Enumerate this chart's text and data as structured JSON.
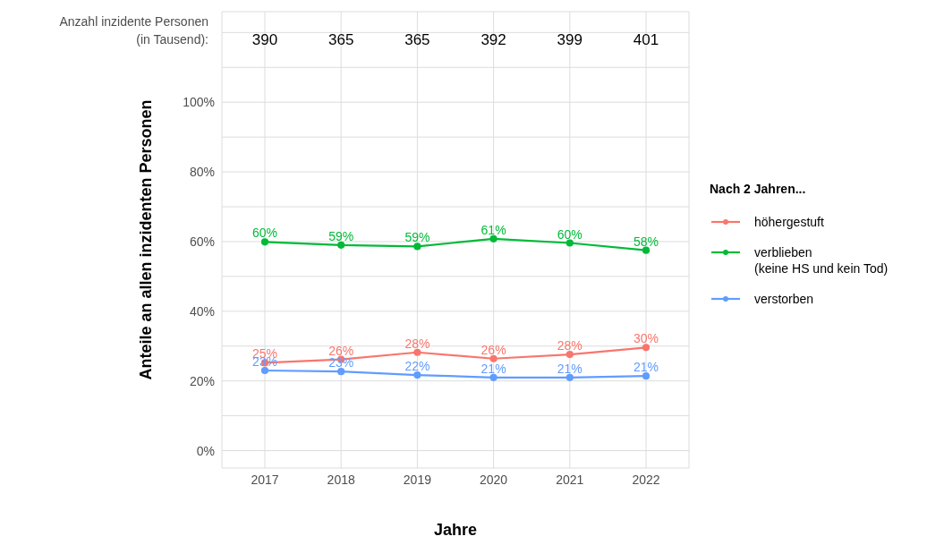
{
  "chart_data": {
    "type": "line",
    "xlabel": "Jahre",
    "ylabel": "Anteile an allen inzidenten Personen",
    "legend_title": "Nach 2 Jahren...",
    "categories": [
      "2017",
      "2018",
      "2019",
      "2020",
      "2021",
      "2022"
    ],
    "series": [
      {
        "name": "höhergestuft",
        "color": "#f8766d",
        "values": [
          25.2,
          26.2,
          28.2,
          26.4,
          27.6,
          29.6
        ],
        "value_labels": [
          "25%",
          "26%",
          "28%",
          "26%",
          "28%",
          "30%"
        ]
      },
      {
        "name": "verblieben\n(keine HS und kein Tod)",
        "color": "#00ba38",
        "values": [
          59.9,
          59.0,
          58.6,
          60.8,
          59.6,
          57.5
        ],
        "value_labels": [
          "60%",
          "59%",
          "59%",
          "61%",
          "60%",
          "58%"
        ]
      },
      {
        "name": "verstorben",
        "color": "#619cff",
        "values": [
          23.0,
          22.7,
          21.7,
          21.0,
          21.0,
          21.4
        ],
        "value_labels": [
          "23%",
          "23%",
          "22%",
          "21%",
          "21%",
          "21%"
        ]
      }
    ],
    "ylim": [
      -5,
      126
    ],
    "yticks": [
      {
        "value": 0,
        "label": "0%"
      },
      {
        "value": 10,
        "label": null
      },
      {
        "value": 20,
        "label": "20%"
      },
      {
        "value": 30,
        "label": null
      },
      {
        "value": 40,
        "label": "40%"
      },
      {
        "value": 50,
        "label": null
      },
      {
        "value": 60,
        "label": "60%"
      },
      {
        "value": 70,
        "label": null
      },
      {
        "value": 80,
        "label": "80%"
      },
      {
        "value": 90,
        "label": null
      },
      {
        "value": 100,
        "label": "100%"
      },
      {
        "value": 110,
        "label": null
      },
      {
        "value": 120,
        "label": null
      }
    ],
    "grid": true,
    "legend": "right",
    "marker": "circle",
    "line_style": "solid",
    "annotations": [
      "Anzahl inzidente Personen\n(in Tausend):",
      "390",
      "365",
      "365",
      "392",
      "399",
      "401"
    ]
  }
}
